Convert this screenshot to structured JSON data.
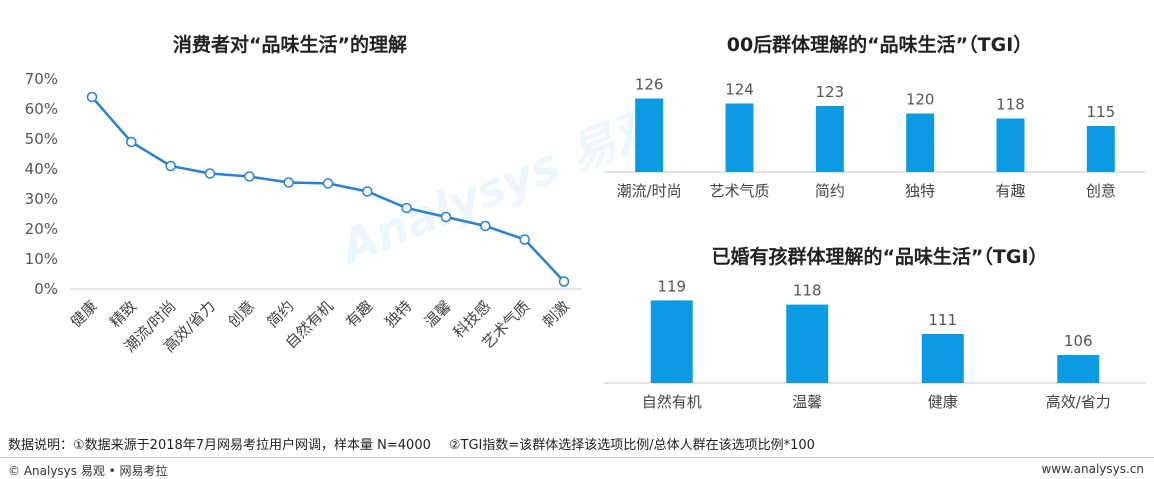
{
  "titles": {
    "chart1": "消费者对“品味生活”的理解",
    "chart2": "00后群体理解的“品味生活”（TGI）",
    "chart3": "已婚有孩群体理解的“品味生活”（TGI）"
  },
  "colors": {
    "line": "#2b7fd4",
    "bar": "#0c9be3",
    "axis": "#c9c9c9"
  },
  "chart_data": [
    {
      "type": "line",
      "title": "消费者对“品味生活”的理解",
      "categories": [
        "健康",
        "精致",
        "潮流/时尚",
        "高效/省力",
        "创意",
        "简约",
        "自然有机",
        "有趣",
        "独特",
        "温馨",
        "科技感",
        "艺术气质",
        "刺激"
      ],
      "values": [
        64,
        49,
        41,
        38.5,
        37.5,
        35.5,
        35.2,
        32.5,
        27,
        24,
        21,
        16.5,
        2.5
      ],
      "yticks": [
        "70%",
        "60%",
        "50%",
        "40%",
        "30%",
        "20%",
        "10%",
        "0%"
      ],
      "ylim": [
        0,
        70
      ],
      "unit": "%"
    },
    {
      "type": "bar",
      "title": "00后群体理解的“品味生活”（TGI）",
      "categories": [
        "潮流/时尚",
        "艺术气质",
        "简约",
        "独特",
        "有趣",
        "创意"
      ],
      "values": [
        126,
        124,
        123,
        120,
        118,
        115
      ]
    },
    {
      "type": "bar",
      "title": "已婚有孩群体理解的“品味生活”（TGI）",
      "categories": [
        "自然有机",
        "温馨",
        "健康",
        "高效/省力"
      ],
      "values": [
        119,
        118,
        111,
        106
      ]
    }
  ],
  "notes": {
    "label": "数据说明：",
    "note1": "①数据来源于2018年7月网易考拉用户网调，样本量 N=4000",
    "note2": "②TGI指数=该群体选择该选项比例/总体人群在该选项比例*100"
  },
  "watermark": "Analysys 易观",
  "footer": {
    "brand": "© Analysys 易观 • 网易考拉",
    "site": "www.analysys.cn"
  }
}
